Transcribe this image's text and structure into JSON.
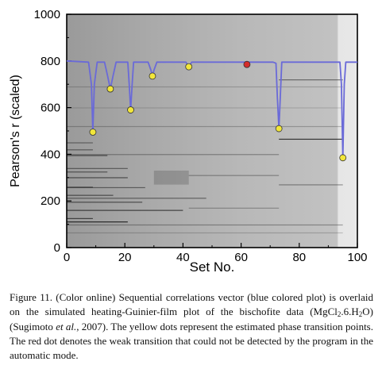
{
  "chart_data": {
    "type": "line",
    "xlabel": "Set No.",
    "ylabel": "Pearson's r (scaled)",
    "xlim": [
      0,
      100
    ],
    "ylim": [
      0,
      1000
    ],
    "x_ticks": [
      "0",
      "20",
      "40",
      "60",
      "80",
      "100"
    ],
    "y_ticks": [
      "0",
      "200",
      "400",
      "600",
      "800",
      "1000"
    ],
    "grid": false,
    "legend": "none",
    "background": "simulated heating-Guinier-film plot (grayscale)",
    "series": [
      {
        "color": "#6a6ad8",
        "x": [
          0,
          7.5,
          8.5,
          9,
          9.5,
          10.5,
          13,
          14,
          15,
          16,
          17,
          21,
          21.5,
          22,
          22.5,
          23,
          28,
          29,
          29.5,
          30,
          31,
          41,
          42,
          43,
          71,
          72,
          72.5,
          73,
          73.5,
          74,
          94,
          94.5,
          95,
          95.5,
          96,
          100
        ],
        "y": [
          800,
          795,
          700,
          495,
          700,
          795,
          795,
          740,
          680,
          740,
          795,
          795,
          700,
          590,
          700,
          795,
          795,
          760,
          735,
          760,
          795,
          795,
          775,
          795,
          795,
          790,
          640,
          510,
          650,
          795,
          795,
          700,
          385,
          700,
          795,
          795
        ]
      }
    ],
    "markers": [
      {
        "color": "#f2e63a",
        "x": 9,
        "y": 495
      },
      {
        "color": "#f2e63a",
        "x": 15,
        "y": 680
      },
      {
        "color": "#f2e63a",
        "x": 22,
        "y": 590
      },
      {
        "color": "#f2e63a",
        "x": 29.5,
        "y": 735
      },
      {
        "color": "#f2e63a",
        "x": 42,
        "y": 775
      },
      {
        "color": "#d42c2c",
        "x": 62,
        "y": 785
      },
      {
        "color": "#f2e63a",
        "x": 73,
        "y": 510
      },
      {
        "color": "#f2e63a",
        "x": 95,
        "y": 385
      }
    ]
  },
  "caption": {
    "part1": "Figure 11. (Color online) Sequential correlations vector (blue colored plot) is overlaid on the simulated heating-Guinier-film plot of the bischofite data (MgCl",
    "sub1": "2",
    "part2": ".6.H",
    "sub2": "2",
    "part3": "O) (Sugimoto ",
    "etal": "et al.",
    "part4": ", 2007). The yellow dots represent the estimated phase transition points. The red dot denotes the weak transition that could not be detected by the program in the automatic mode."
  }
}
